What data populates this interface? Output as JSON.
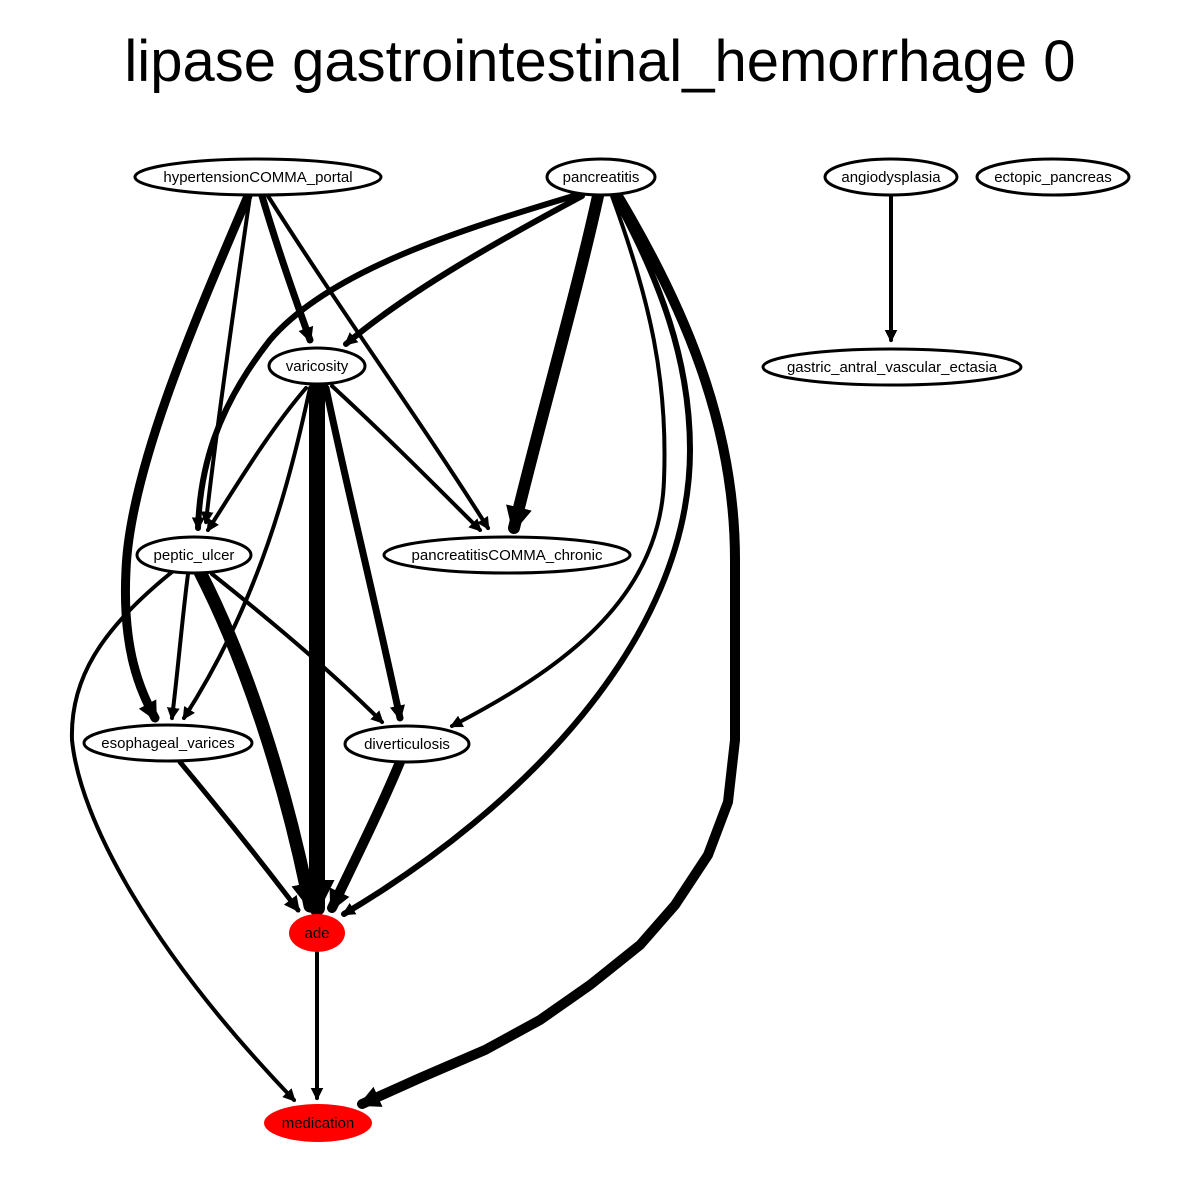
{
  "title": "lipase gastrointestinal_hemorrhage 0",
  "colors": {
    "background": "#ffffff",
    "stroke": "#000000",
    "node_fill": "#ffffff",
    "highlight_fill": "#ff0000"
  },
  "nodes": {
    "hypertension_portal": {
      "label": "hypertensionCOMMA_portal",
      "highlighted": false
    },
    "pancreatitis": {
      "label": "pancreatitis",
      "highlighted": false
    },
    "angiodysplasia": {
      "label": "angiodysplasia",
      "highlighted": false
    },
    "ectopic_pancreas": {
      "label": "ectopic_pancreas",
      "highlighted": false
    },
    "varicosity": {
      "label": "varicosity",
      "highlighted": false
    },
    "gave": {
      "label": "gastric_antral_vascular_ectasia",
      "highlighted": false
    },
    "peptic_ulcer": {
      "label": "peptic_ulcer",
      "highlighted": false
    },
    "pancreatitis_chronic": {
      "label": "pancreatitisCOMMA_chronic",
      "highlighted": false
    },
    "esophageal_varices": {
      "label": "esophageal_varices",
      "highlighted": false
    },
    "diverticulosis": {
      "label": "diverticulosis",
      "highlighted": false
    },
    "ade": {
      "label": "ade",
      "highlighted": true
    },
    "medication": {
      "label": "medication",
      "highlighted": true
    }
  },
  "edges": [
    {
      "from": "hypertension_portal",
      "to": "esophageal_varices",
      "weight": "heavy"
    },
    {
      "from": "hypertension_portal",
      "to": "peptic_ulcer",
      "weight": "light"
    },
    {
      "from": "hypertension_portal",
      "to": "varicosity",
      "weight": "medium"
    },
    {
      "from": "hypertension_portal",
      "to": "pancreatitis_chronic",
      "weight": "light"
    },
    {
      "from": "pancreatitis",
      "to": "peptic_ulcer",
      "weight": "medium"
    },
    {
      "from": "pancreatitis",
      "to": "varicosity",
      "weight": "medium"
    },
    {
      "from": "pancreatitis",
      "to": "pancreatitis_chronic",
      "weight": "heavy"
    },
    {
      "from": "pancreatitis",
      "to": "diverticulosis",
      "weight": "light"
    },
    {
      "from": "pancreatitis",
      "to": "ade",
      "weight": "medium"
    },
    {
      "from": "pancreatitis",
      "to": "medication",
      "weight": "heavy"
    },
    {
      "from": "angiodysplasia",
      "to": "gave",
      "weight": "light"
    },
    {
      "from": "varicosity",
      "to": "peptic_ulcer",
      "weight": "light"
    },
    {
      "from": "varicosity",
      "to": "pancreatitis_chronic",
      "weight": "light"
    },
    {
      "from": "varicosity",
      "to": "esophageal_varices",
      "weight": "light"
    },
    {
      "from": "varicosity",
      "to": "diverticulosis",
      "weight": "medium"
    },
    {
      "from": "varicosity",
      "to": "ade",
      "weight": "heaviest"
    },
    {
      "from": "peptic_ulcer",
      "to": "esophageal_varices",
      "weight": "light"
    },
    {
      "from": "peptic_ulcer",
      "to": "diverticulosis",
      "weight": "light"
    },
    {
      "from": "peptic_ulcer",
      "to": "ade",
      "weight": "heavy"
    },
    {
      "from": "peptic_ulcer",
      "to": "medication",
      "weight": "light"
    },
    {
      "from": "esophageal_varices",
      "to": "ade",
      "weight": "light"
    },
    {
      "from": "diverticulosis",
      "to": "ade",
      "weight": "heavy"
    },
    {
      "from": "ade",
      "to": "medication",
      "weight": "light"
    }
  ]
}
